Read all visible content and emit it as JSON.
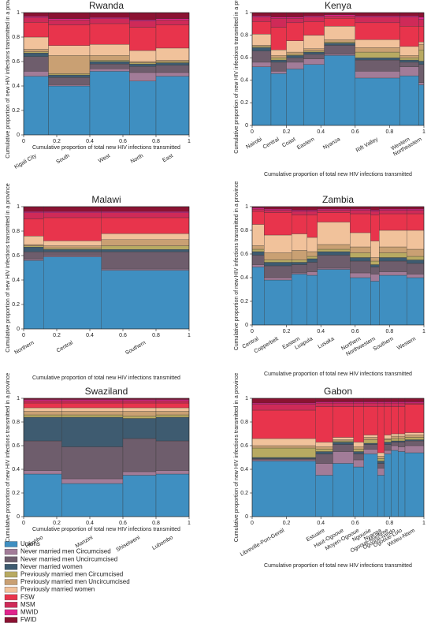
{
  "legend": {
    "items": [
      {
        "name": "Unions",
        "color": "#3f8fc1"
      },
      {
        "name": "Never married men Circumcised",
        "color": "#a27c98"
      },
      {
        "name": "Never married men Uncircumcised",
        "color": "#6e5d6c"
      },
      {
        "name": "Never married women",
        "color": "#3e5b70"
      },
      {
        "name": "Previously married men Circumcised",
        "color": "#b8aa62"
      },
      {
        "name": "Previously married men Uncircumcised",
        "color": "#c9a073"
      },
      {
        "name": "Previously married women",
        "color": "#f1c29b"
      },
      {
        "name": "FSW",
        "color": "#e8344c"
      },
      {
        "name": "MSM",
        "color": "#cf2a58"
      },
      {
        "name": "MWID",
        "color": "#e0238c"
      },
      {
        "name": "FWID",
        "color": "#8b1232"
      }
    ]
  },
  "chart_data": [
    {
      "type": "mosaic",
      "title": "Rwanda",
      "xlabel": "Cumulative proportion of total new HIV infections transmitted",
      "ylabel": "Cumulative proportion of new HIV infections transmitted in a province",
      "xlim": [
        0,
        1
      ],
      "ylim": [
        0,
        1
      ],
      "xticks": [
        0,
        0.2,
        0.4,
        0.6,
        0.8,
        1
      ],
      "yticks": [
        0,
        0.2,
        0.4,
        0.6,
        0.8,
        1
      ],
      "categories": [
        "Kigali City",
        "South",
        "West",
        "North",
        "East"
      ],
      "widths": [
        0.15,
        0.25,
        0.24,
        0.16,
        0.2
      ],
      "values": [
        [
          0.48,
          0.04,
          0.12,
          0.03,
          0.01,
          0.02,
          0.1,
          0.12,
          0.04,
          0.01,
          0.03
        ],
        [
          0.4,
          0.01,
          0.06,
          0.02,
          0.01,
          0.15,
          0.08,
          0.17,
          0.04,
          0.01,
          0.05
        ],
        [
          0.52,
          0.02,
          0.04,
          0.02,
          0.01,
          0.04,
          0.09,
          0.17,
          0.04,
          0.01,
          0.04
        ],
        [
          0.44,
          0.07,
          0.05,
          0.02,
          0.01,
          0.01,
          0.09,
          0.19,
          0.05,
          0.01,
          0.06
        ],
        [
          0.48,
          0.03,
          0.06,
          0.02,
          0.01,
          0.01,
          0.1,
          0.19,
          0.04,
          0.01,
          0.05
        ]
      ]
    },
    {
      "type": "mosaic",
      "title": "Kenya",
      "xlabel": "Cumulative proportion of total new HIV infections transmitted",
      "ylabel": "Cumulative proportion of new HIV infections transmitted in a province",
      "xlim": [
        0,
        1
      ],
      "ylim": [
        0,
        1
      ],
      "xticks": [
        0,
        0.2,
        0.4,
        0.6,
        0.8,
        1
      ],
      "yticks": [
        0,
        0.2,
        0.4,
        0.6,
        0.8,
        1
      ],
      "categories": [
        "Nairobi",
        "Central",
        "Coast",
        "Eastern",
        "Nyanza",
        "Rift Valley",
        "Western",
        "Northeastern"
      ],
      "widths": [
        0.11,
        0.09,
        0.1,
        0.12,
        0.18,
        0.26,
        0.11,
        0.03
      ],
      "values": [
        [
          0.52,
          0.04,
          0.1,
          0.03,
          0.01,
          0.01,
          0.1,
          0.11,
          0.04,
          0.01,
          0.03
        ],
        [
          0.46,
          0.02,
          0.08,
          0.02,
          0.02,
          0.02,
          0.05,
          0.2,
          0.08,
          0.01,
          0.04
        ],
        [
          0.5,
          0.06,
          0.04,
          0.02,
          0.01,
          0.02,
          0.1,
          0.16,
          0.04,
          0.01,
          0.04
        ],
        [
          0.54,
          0.05,
          0.04,
          0.02,
          0.01,
          0.02,
          0.12,
          0.12,
          0.04,
          0.01,
          0.03
        ],
        [
          0.62,
          0.01,
          0.08,
          0.02,
          0.01,
          0.02,
          0.12,
          0.07,
          0.02,
          0.01,
          0.02
        ],
        [
          0.42,
          0.06,
          0.1,
          0.02,
          0.05,
          0.04,
          0.07,
          0.15,
          0.05,
          0.01,
          0.03
        ],
        [
          0.44,
          0.08,
          0.04,
          0.02,
          0.02,
          0.02,
          0.08,
          0.18,
          0.08,
          0.01,
          0.03
        ],
        [
          0.36,
          0.02,
          0.16,
          0.03,
          0.1,
          0.05,
          0.02,
          0.14,
          0.06,
          0.02,
          0.04
        ]
      ]
    },
    {
      "type": "mosaic",
      "title": "Malawi",
      "xlabel": "Cumulative proportion of total new HIV infections transmitted",
      "ylabel": "Cumulative proportion of new HIV infections transmitted in a province",
      "xlim": [
        0,
        1
      ],
      "ylim": [
        0,
        1
      ],
      "xticks": [
        0,
        0.2,
        0.4,
        0.6,
        0.8,
        1
      ],
      "yticks": [
        0,
        0.2,
        0.4,
        0.6,
        0.8,
        1
      ],
      "categories": [
        "Northern",
        "Central",
        "Southern"
      ],
      "widths": [
        0.12,
        0.35,
        0.53
      ],
      "values": [
        [
          0.56,
          0.01,
          0.06,
          0.04,
          0.01,
          0.01,
          0.07,
          0.14,
          0.05,
          0.01,
          0.04
        ],
        [
          0.59,
          0.01,
          0.03,
          0.02,
          0.01,
          0.02,
          0.04,
          0.19,
          0.04,
          0.01,
          0.04
        ],
        [
          0.48,
          0.01,
          0.14,
          0.02,
          0.03,
          0.05,
          0.05,
          0.13,
          0.04,
          0.01,
          0.04
        ]
      ]
    },
    {
      "type": "mosaic",
      "title": "Zambia",
      "xlabel": "Cumulative proportion of total new HIV infections transmitted",
      "ylabel": "Cumulative proportion of new HIV infections transmitted in a province",
      "xlim": [
        0,
        1
      ],
      "ylim": [
        0,
        1
      ],
      "xticks": [
        0,
        0.2,
        0.4,
        0.6,
        0.8,
        1
      ],
      "yticks": [
        0,
        0.2,
        0.4,
        0.6,
        0.8,
        1
      ],
      "categories": [
        "Central",
        "Copperbelt",
        "Eastern",
        "Luapula",
        "Lusaka",
        "Northern",
        "Northwestern",
        "Southern",
        "Western"
      ],
      "widths": [
        0.07,
        0.16,
        0.09,
        0.06,
        0.19,
        0.12,
        0.05,
        0.16,
        0.1
      ],
      "values": [
        [
          0.49,
          0.02,
          0.08,
          0.03,
          0.02,
          0.03,
          0.18,
          0.11,
          0.02,
          0.01,
          0.01
        ],
        [
          0.38,
          0.02,
          0.1,
          0.03,
          0.02,
          0.06,
          0.15,
          0.19,
          0.02,
          0.01,
          0.02
        ],
        [
          0.43,
          0.01,
          0.07,
          0.02,
          0.02,
          0.08,
          0.14,
          0.16,
          0.03,
          0.01,
          0.03
        ],
        [
          0.42,
          0.03,
          0.08,
          0.03,
          0.02,
          0.04,
          0.12,
          0.19,
          0.03,
          0.01,
          0.03
        ],
        [
          0.47,
          0.01,
          0.11,
          0.03,
          0.02,
          0.04,
          0.19,
          0.08,
          0.02,
          0.01,
          0.02
        ],
        [
          0.4,
          0.04,
          0.1,
          0.03,
          0.04,
          0.05,
          0.12,
          0.16,
          0.03,
          0.01,
          0.02
        ],
        [
          0.37,
          0.06,
          0.06,
          0.02,
          0.03,
          0.03,
          0.14,
          0.22,
          0.03,
          0.01,
          0.03
        ],
        [
          0.42,
          0.03,
          0.09,
          0.03,
          0.04,
          0.05,
          0.14,
          0.14,
          0.03,
          0.01,
          0.02
        ],
        [
          0.4,
          0.03,
          0.09,
          0.03,
          0.03,
          0.06,
          0.16,
          0.14,
          0.03,
          0.01,
          0.02
        ]
      ]
    },
    {
      "type": "mosaic",
      "title": "Swaziland",
      "xlabel": "Cumulative proportion of total new HIV infections transmitted",
      "ylabel": "Cumulative proportion of new HIV infections transmitted in a province",
      "xlim": [
        0,
        1
      ],
      "ylim": [
        0,
        1
      ],
      "xticks": [
        0,
        0.2,
        0.4,
        0.6,
        0.8,
        1
      ],
      "yticks": [
        0,
        0.2,
        0.4,
        0.6,
        0.8,
        1
      ],
      "categories": [
        "Hhohho",
        "Manzini",
        "Shiselweni",
        "Lubombo"
      ],
      "widths": [
        0.23,
        0.37,
        0.2,
        0.2
      ],
      "values": [
        [
          0.36,
          0.03,
          0.25,
          0.2,
          0.02,
          0.03,
          0.03,
          0.04,
          0.02,
          0.01,
          0.01
        ],
        [
          0.28,
          0.04,
          0.27,
          0.25,
          0.02,
          0.03,
          0.03,
          0.04,
          0.02,
          0.01,
          0.01
        ],
        [
          0.35,
          0.03,
          0.28,
          0.17,
          0.02,
          0.04,
          0.03,
          0.04,
          0.02,
          0.01,
          0.01
        ],
        [
          0.36,
          0.03,
          0.25,
          0.2,
          0.02,
          0.03,
          0.03,
          0.04,
          0.02,
          0.01,
          0.01
        ]
      ]
    },
    {
      "type": "mosaic",
      "title": "Gabon",
      "xlabel": "Cumulative proportion of total new HIV infections transmitted",
      "ylabel": "Cumulative proportion of new HIV infections transmitted in a province",
      "xlim": [
        0,
        1
      ],
      "ylim": [
        0,
        1
      ],
      "xticks": [
        0,
        0.2,
        0.4,
        0.6,
        0.8,
        1
      ],
      "yticks": [
        0,
        0.2,
        0.4,
        0.6,
        0.8,
        1
      ],
      "categories": [
        "Libreville-Port-Gentil",
        "Estuaire",
        "Haut-Ogooue",
        "Moyen-Ogooue",
        "Ngounie",
        "Nyanga",
        "Ogooue-Maritime",
        "Ogooue-Ivindo",
        "Ogooue-Lolo",
        "Woleu-Ntem"
      ],
      "widths": [
        0.37,
        0.1,
        0.12,
        0.06,
        0.08,
        0.04,
        0.04,
        0.04,
        0.04,
        0.11
      ],
      "values": [
        [
          0.47,
          0.01,
          0.01,
          0.01,
          0.08,
          0.02,
          0.06,
          0.24,
          0.05,
          0.01,
          0.04
        ],
        [
          0.35,
          0.1,
          0.08,
          0.02,
          0.02,
          0.02,
          0.04,
          0.3,
          0.03,
          0.01,
          0.03
        ],
        [
          0.45,
          0.1,
          0.06,
          0.02,
          0.01,
          0.01,
          0.02,
          0.26,
          0.03,
          0.01,
          0.03
        ],
        [
          0.42,
          0.06,
          0.05,
          0.02,
          0.02,
          0.02,
          0.04,
          0.3,
          0.03,
          0.01,
          0.03
        ],
        [
          0.53,
          0.04,
          0.04,
          0.01,
          0.03,
          0.02,
          0.02,
          0.24,
          0.03,
          0.01,
          0.03
        ],
        [
          0.35,
          0.06,
          0.04,
          0.02,
          0.02,
          0.02,
          0.03,
          0.39,
          0.03,
          0.01,
          0.03
        ],
        [
          0.53,
          0.03,
          0.05,
          0.02,
          0.02,
          0.01,
          0.03,
          0.24,
          0.03,
          0.01,
          0.03
        ],
        [
          0.56,
          0.04,
          0.03,
          0.01,
          0.02,
          0.02,
          0.02,
          0.23,
          0.03,
          0.01,
          0.03
        ],
        [
          0.55,
          0.04,
          0.04,
          0.01,
          0.02,
          0.02,
          0.02,
          0.23,
          0.03,
          0.01,
          0.03
        ],
        [
          0.54,
          0.06,
          0.04,
          0.01,
          0.02,
          0.02,
          0.02,
          0.24,
          0.01,
          0.01,
          0.03
        ]
      ]
    }
  ]
}
